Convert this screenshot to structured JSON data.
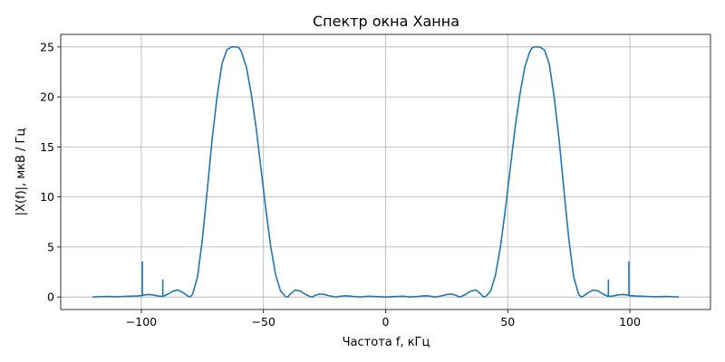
{
  "chart_data": {
    "type": "line",
    "title": "Спектр окна Ханна",
    "xlabel": "Частота f, кГц",
    "ylabel": "|X(f)|,  мкВ / Гц",
    "xlim": [
      -133,
      133
    ],
    "ylim": [
      -1.25,
      26.25
    ],
    "xticks": [
      -100,
      -50,
      0,
      50,
      100
    ],
    "xtick_labels": [
      "−100",
      "−50",
      "0",
      "50",
      "100"
    ],
    "yticks": [
      0,
      5,
      10,
      15,
      20,
      25
    ],
    "ytick_labels": [
      "0",
      "5",
      "10",
      "15",
      "20",
      "25"
    ],
    "grid": true,
    "line_color": "#1f77b4",
    "series": [
      {
        "x": [
          -120,
          -117,
          -114,
          -111,
          -108,
          -105,
          -102,
          -99.6,
          -99.6,
          -99.6,
          -99,
          -97,
          -95,
          -93,
          -91.2,
          -91.2,
          -91.2,
          -89,
          -87,
          -85,
          -83,
          -81,
          -80,
          -79,
          -77,
          -75,
          -73,
          -71,
          -69,
          -67,
          -65,
          -63,
          -61,
          -60,
          -59,
          -57,
          -55,
          -53,
          -51,
          -49,
          -47,
          -45,
          -43,
          -41,
          -40,
          -39,
          -37,
          -35,
          -33,
          -31,
          -30,
          -29,
          -27,
          -25,
          -23,
          -21,
          -20,
          -19,
          -17,
          -15,
          -13,
          -11,
          -10,
          -9,
          -7,
          -5,
          -3,
          -1,
          0,
          1,
          3,
          5,
          7,
          9,
          10,
          11,
          13,
          15,
          17,
          19,
          20,
          21,
          23,
          25,
          27,
          29,
          30,
          31,
          33,
          35,
          37,
          39,
          40,
          41,
          43,
          45,
          47,
          49,
          51,
          53,
          55,
          57,
          59,
          60,
          61,
          63,
          65,
          67,
          69,
          71,
          73,
          75,
          77,
          79,
          80,
          81,
          83,
          85,
          87,
          89,
          91.2,
          91.2,
          91.2,
          93,
          95,
          97,
          99,
          99.6,
          99.6,
          99.6,
          102,
          105,
          108,
          111,
          114,
          117,
          120
        ],
        "y": [
          0.0,
          0.04,
          0.06,
          0.02,
          0.05,
          0.08,
          0.1,
          0.15,
          3.5,
          0.15,
          0.2,
          0.25,
          0.2,
          0.1,
          0.05,
          1.7,
          0.05,
          0.3,
          0.6,
          0.7,
          0.45,
          0.1,
          0.0,
          0.3,
          2.0,
          5.8,
          10.7,
          15.8,
          20.0,
          23.3,
          24.7,
          25.0,
          25.0,
          24.9,
          24.5,
          23.0,
          20.3,
          16.9,
          12.8,
          8.7,
          5.0,
          2.2,
          0.6,
          0.05,
          0.0,
          0.3,
          0.7,
          0.6,
          0.3,
          0.05,
          0.0,
          0.15,
          0.3,
          0.25,
          0.12,
          0.02,
          0.0,
          0.06,
          0.12,
          0.1,
          0.05,
          0.02,
          0.0,
          0.04,
          0.08,
          0.06,
          0.03,
          0.01,
          0.0,
          0.01,
          0.03,
          0.06,
          0.08,
          0.04,
          0.0,
          0.02,
          0.05,
          0.1,
          0.12,
          0.06,
          0.0,
          0.02,
          0.12,
          0.25,
          0.3,
          0.15,
          0.0,
          0.05,
          0.3,
          0.6,
          0.7,
          0.3,
          0.0,
          0.05,
          0.6,
          2.2,
          5.0,
          8.7,
          12.8,
          16.9,
          20.3,
          23.0,
          24.5,
          24.9,
          25.0,
          25.0,
          24.7,
          23.3,
          20.0,
          15.8,
          10.7,
          5.8,
          2.0,
          0.3,
          0.0,
          0.1,
          0.45,
          0.7,
          0.6,
          0.3,
          0.05,
          1.7,
          0.05,
          0.1,
          0.2,
          0.25,
          0.2,
          0.15,
          3.5,
          0.15,
          0.1,
          0.08,
          0.05,
          0.02,
          0.06,
          0.04,
          0.0
        ]
      }
    ]
  }
}
